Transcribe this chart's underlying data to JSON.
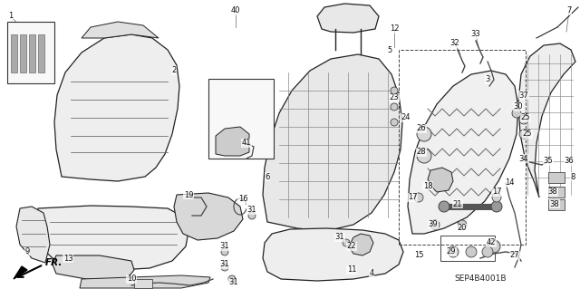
{
  "bg_color": "#ffffff",
  "diagram_code": "SEP4B4001B",
  "figsize": [
    6.4,
    3.19
  ],
  "dpi": 100,
  "line_color": "#222222",
  "lw": 0.7
}
